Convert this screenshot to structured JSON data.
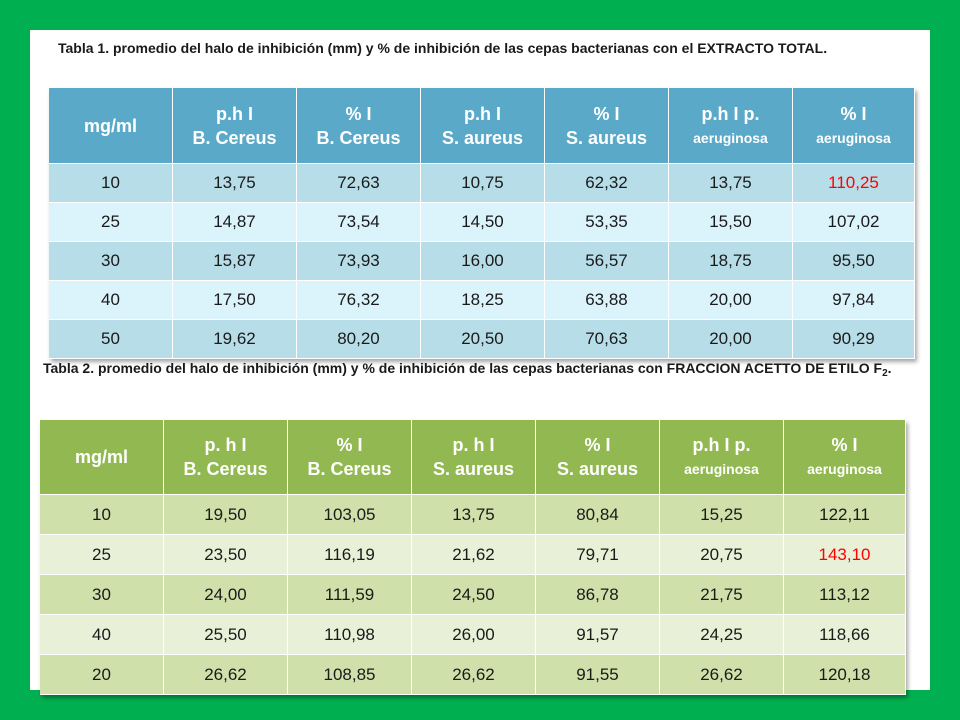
{
  "caption1": "Tabla 1. promedio del halo de inhibición (mm) y % de inhibición de las cepas bacterianas con el EXTRACTO TOTAL.",
  "caption2_main": "Tabla 2. promedio del halo de inhibición (mm) y % de inhibición de las cepas bacterianas con FRACCION ACETTO DE ETILO F",
  "caption2_sub": "2",
  "caption2_end": ".",
  "table1": {
    "headers": [
      {
        "top": "",
        "bottom": "mg/ml"
      },
      {
        "top": "p.h I",
        "bottom": "B. Cereus"
      },
      {
        "top": "%  I",
        "bottom": "B. Cereus"
      },
      {
        "top": "p.h I",
        "bottom": "S. aureus"
      },
      {
        "top": "%  I",
        "bottom": "S. aureus"
      },
      {
        "top": "p.h I  p.",
        "bottom": "aeruginosa"
      },
      {
        "top": "%  I",
        "bottom": "aeruginosa"
      }
    ],
    "rows": [
      [
        "10",
        "13,75",
        "72,63",
        "10,75",
        "62,32",
        "13,75",
        "110,25"
      ],
      [
        "25",
        "14,87",
        "73,54",
        "14,50",
        "53,35",
        "15,50",
        "107,02"
      ],
      [
        "30",
        "15,87",
        "73,93",
        "16,00",
        "56,57",
        "18,75",
        "95,50"
      ],
      [
        "40",
        "17,50",
        "76,32",
        "18,25",
        "63,88",
        "20,00",
        "97,84"
      ],
      [
        "50",
        "19,62",
        "80,20",
        "20,50",
        "70,63",
        "20,00",
        "90,29"
      ]
    ]
  },
  "table2": {
    "headers": [
      {
        "top": "",
        "bottom": "mg/ml"
      },
      {
        "top": "p. h I",
        "bottom": "B. Cereus"
      },
      {
        "top": "%  I",
        "bottom": "B. Cereus"
      },
      {
        "top": "p. h I",
        "bottom": "S. aureus"
      },
      {
        "top": "%  I",
        "bottom": "S. aureus"
      },
      {
        "top": "p.h I  p.",
        "bottom": "aeruginosa"
      },
      {
        "top": "%  I",
        "bottom": "aeruginosa"
      }
    ],
    "rows": [
      [
        "10",
        "19,50",
        "103,05",
        "13,75",
        "80,84",
        "15,25",
        "122,11"
      ],
      [
        "25",
        "23,50",
        "116,19",
        "21,62",
        "79,71",
        "20,75",
        "143,10"
      ],
      [
        "30",
        "24,00",
        "111,59",
        "24,50",
        "86,78",
        "21,75",
        "113,12"
      ],
      [
        "40",
        "25,50",
        "110,98",
        "26,00",
        "91,57",
        "24,25",
        "118,66"
      ],
      [
        "20",
        "26,62",
        "108,85",
        "26,62",
        "91,55",
        "26,62",
        "120,18"
      ]
    ]
  },
  "colors": {
    "background_green": "#00b050",
    "table1_header": "#5aa9c9",
    "table2_header": "#92b951",
    "highlight_red": "#ff0000"
  }
}
